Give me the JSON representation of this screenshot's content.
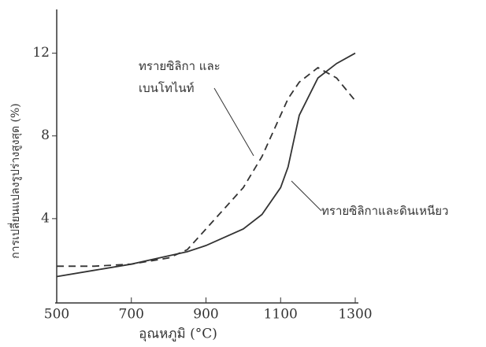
{
  "chart_data": {
    "type": "line",
    "x_label": "อุณหภูมิ (°C)",
    "y_label": "การเปลี่ยนแปลงรูปร่างสูงสุด (%)",
    "x": [
      500,
      600,
      700,
      800,
      850,
      900,
      1000,
      1050,
      1100,
      1120,
      1150,
      1200,
      1250,
      1300
    ],
    "series": [
      {
        "name": "ทรายซิลิกา และเบนโทไนท์",
        "color": "#333333",
        "style": "dashed",
        "values": [
          1.7,
          1.7,
          1.8,
          2.1,
          2.5,
          3.5,
          5.5,
          7.0,
          9.0,
          9.8,
          10.6,
          11.3,
          10.8,
          9.7
        ]
      },
      {
        "name": "ทรายซิลิกาและดินเหนียว",
        "color": "#333333",
        "style": "solid",
        "values": [
          1.2,
          1.5,
          1.8,
          2.2,
          2.4,
          2.7,
          3.5,
          4.2,
          5.5,
          6.5,
          9.0,
          10.8,
          11.5,
          12.0
        ]
      }
    ],
    "xlim": [
      500,
      1300
    ],
    "xticks": [
      500,
      700,
      900,
      1100,
      1300
    ],
    "ylim": [
      0,
      14
    ],
    "yticks": [
      4,
      8,
      12
    ]
  }
}
